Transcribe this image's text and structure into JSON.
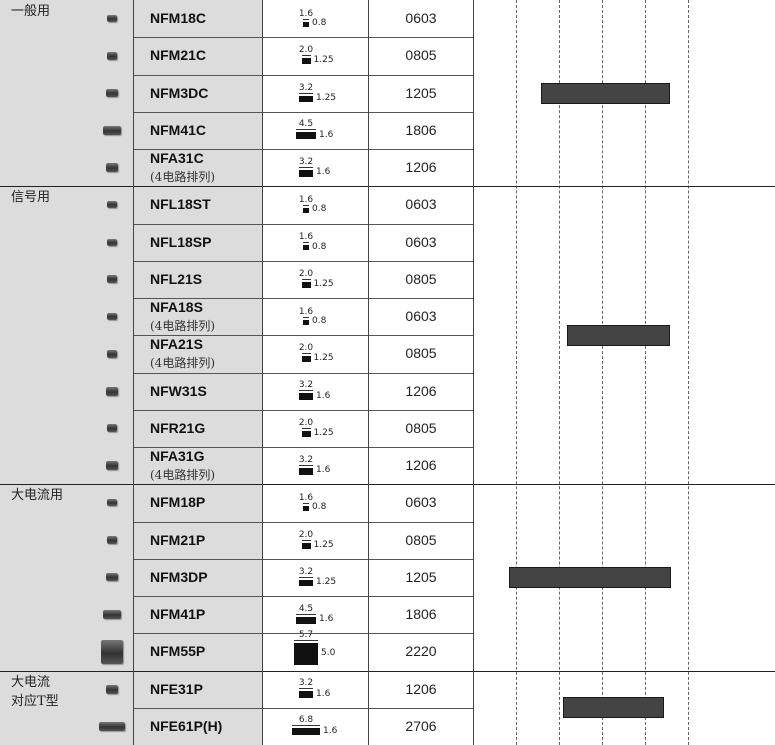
{
  "chart_data": {
    "type": "table",
    "categories": [
      {
        "label": "一般用",
        "rows": [
          {
            "part": "NFM18C",
            "sub": "",
            "size": "0603",
            "dim_w": "1.6",
            "dim_h": "0.8",
            "chip_w": 6,
            "chip_h": 5
          },
          {
            "part": "NFM21C",
            "sub": "",
            "size": "0805",
            "dim_w": "2.0",
            "dim_h": "1.25",
            "chip_w": 9,
            "chip_h": 6
          },
          {
            "part": "NFM3DC",
            "sub": "",
            "size": "1205",
            "dim_w": "3.2",
            "dim_h": "1.25",
            "chip_w": 14,
            "chip_h": 6
          },
          {
            "part": "NFM41C",
            "sub": "",
            "size": "1806",
            "dim_w": "4.5",
            "dim_h": "1.6",
            "chip_w": 20,
            "chip_h": 7
          },
          {
            "part": "NFA31C",
            "sub": "(4电路排列)",
            "size": "1206",
            "dim_w": "3.2",
            "dim_h": "1.6",
            "chip_w": 14,
            "chip_h": 7
          }
        ]
      },
      {
        "label": "信号用",
        "rows": [
          {
            "part": "NFL18ST",
            "sub": "",
            "size": "0603",
            "dim_w": "1.6",
            "dim_h": "0.8",
            "chip_w": 6,
            "chip_h": 5
          },
          {
            "part": "NFL18SP",
            "sub": "",
            "size": "0603",
            "dim_w": "1.6",
            "dim_h": "0.8",
            "chip_w": 6,
            "chip_h": 5
          },
          {
            "part": "NFL21S",
            "sub": "",
            "size": "0805",
            "dim_w": "2.0",
            "dim_h": "1.25",
            "chip_w": 9,
            "chip_h": 6
          },
          {
            "part": "NFA18S",
            "sub": "(4电路排列)",
            "size": "0603",
            "dim_w": "1.6",
            "dim_h": "0.8",
            "chip_w": 6,
            "chip_h": 5
          },
          {
            "part": "NFA21S",
            "sub": "(4电路排列)",
            "size": "0805",
            "dim_w": "2.0",
            "dim_h": "1.25",
            "chip_w": 9,
            "chip_h": 6
          },
          {
            "part": "NFW31S",
            "sub": "",
            "size": "1206",
            "dim_w": "3.2",
            "dim_h": "1.6",
            "chip_w": 14,
            "chip_h": 7
          },
          {
            "part": "NFR21G",
            "sub": "",
            "size": "0805",
            "dim_w": "2.0",
            "dim_h": "1.25",
            "chip_w": 9,
            "chip_h": 6
          },
          {
            "part": "NFA31G",
            "sub": "(4电路排列)",
            "size": "1206",
            "dim_w": "3.2",
            "dim_h": "1.6",
            "chip_w": 14,
            "chip_h": 7
          }
        ]
      },
      {
        "label": "大电流用",
        "rows": [
          {
            "part": "NFM18P",
            "sub": "",
            "size": "0603",
            "dim_w": "1.6",
            "dim_h": "0.8",
            "chip_w": 6,
            "chip_h": 5
          },
          {
            "part": "NFM21P",
            "sub": "",
            "size": "0805",
            "dim_w": "2.0",
            "dim_h": "1.25",
            "chip_w": 9,
            "chip_h": 6
          },
          {
            "part": "NFM3DP",
            "sub": "",
            "size": "1205",
            "dim_w": "3.2",
            "dim_h": "1.25",
            "chip_w": 14,
            "chip_h": 6
          },
          {
            "part": "NFM41P",
            "sub": "",
            "size": "1806",
            "dim_w": "4.5",
            "dim_h": "1.6",
            "chip_w": 20,
            "chip_h": 7
          },
          {
            "part": "NFM55P",
            "sub": "",
            "size": "2220",
            "dim_w": "5.7",
            "dim_h": "5.0",
            "chip_w": 24,
            "chip_h": 22
          }
        ]
      },
      {
        "label": "大电流\n对应T型",
        "rows": [
          {
            "part": "NFE31P",
            "sub": "",
            "size": "1206",
            "dim_w": "3.2",
            "dim_h": "1.6",
            "chip_w": 14,
            "chip_h": 7
          },
          {
            "part": "NFE61P(H)",
            "sub": "",
            "size": "2706",
            "dim_w": "6.8",
            "dim_h": "1.6",
            "chip_w": 28,
            "chip_h": 7
          }
        ]
      }
    ],
    "bars": [
      {
        "category": "一般用",
        "start": 0.6,
        "end": 3.6
      },
      {
        "category": "信号用",
        "start": 1.2,
        "end": 3.6
      },
      {
        "category": "大电流用",
        "start": -0.15,
        "end": 3.6
      },
      {
        "category": "大电流\n对应T型",
        "start": 1.1,
        "end": 3.45
      }
    ],
    "x_grid": [
      -1,
      0,
      1,
      2,
      3,
      4
    ],
    "colors": {
      "label_bg": "#dcdcdc",
      "bar_fill": "#444444",
      "bar_border": "#1a1a1a"
    }
  }
}
